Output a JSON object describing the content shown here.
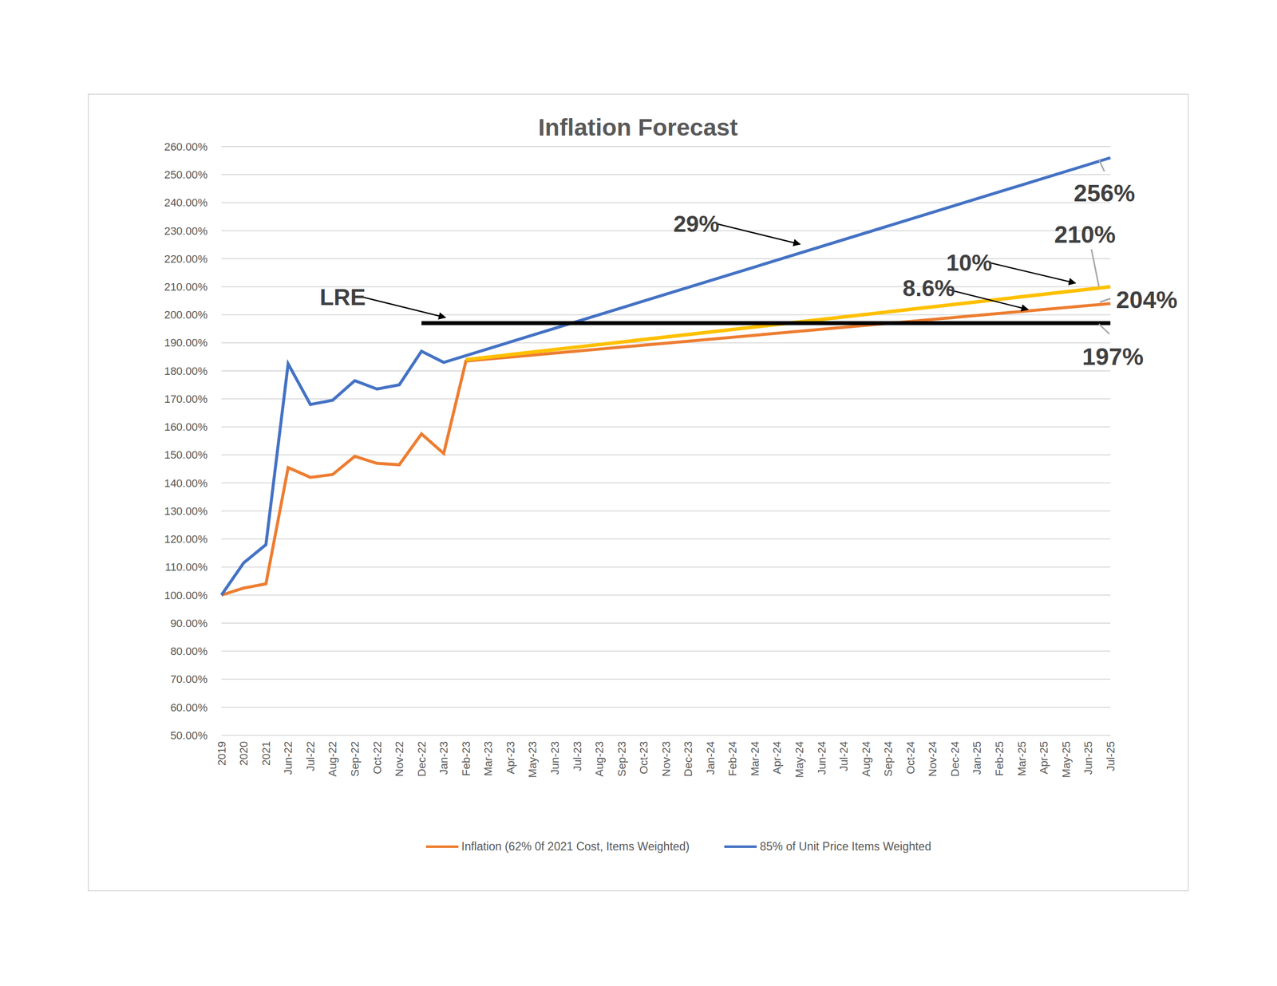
{
  "chart_data": {
    "type": "line",
    "title": "Inflation Forecast",
    "categories": [
      "2019",
      "2020",
      "2021",
      "Jun-22",
      "Jul-22",
      "Aug-22",
      "Sep-22",
      "Oct-22",
      "Nov-22",
      "Dec-22",
      "Jan-23",
      "Feb-23",
      "Mar-23",
      "Apr-23",
      "May-23",
      "Jun-23",
      "Jul-23",
      "Aug-23",
      "Sep-23",
      "Oct-23",
      "Nov-23",
      "Dec-23",
      "Jan-24",
      "Feb-24",
      "Mar-24",
      "Apr-24",
      "May-24",
      "Jun-24",
      "Jul-24",
      "Aug-24",
      "Sep-24",
      "Oct-24",
      "Nov-24",
      "Dec-24",
      "Jan-25",
      "Feb-25",
      "Mar-25",
      "Apr-25",
      "May-25",
      "Jun-25",
      "Jul-25"
    ],
    "series": [
      {
        "name": "Inflation (62% 0f 2021 Cost, Items Weighted)",
        "color": "#ed7d31",
        "values": [
          100,
          102.5,
          104,
          145.5,
          142,
          143,
          149.5,
          147,
          146.5,
          157.5,
          150.5,
          183.5,
          null,
          null,
          null,
          null,
          null,
          null,
          null,
          null,
          null,
          null,
          null,
          null,
          null,
          null,
          null,
          null,
          null,
          null,
          null,
          null,
          null,
          null,
          null,
          null,
          null,
          null,
          null,
          null,
          204
        ]
      },
      {
        "name": "85% of Unit Price Items Weighted",
        "color": "#4472c4",
        "values": [
          100,
          111.5,
          118,
          182.5,
          168,
          169.5,
          176.5,
          173.5,
          175,
          187,
          183,
          null,
          null,
          null,
          null,
          null,
          null,
          null,
          null,
          null,
          null,
          null,
          null,
          null,
          null,
          null,
          null,
          null,
          null,
          null,
          null,
          null,
          null,
          null,
          null,
          null,
          null,
          null,
          null,
          null,
          256
        ]
      },
      {
        "color": "#ffc000",
        "values": [
          null,
          null,
          null,
          null,
          null,
          null,
          null,
          null,
          null,
          null,
          null,
          184,
          null,
          null,
          null,
          null,
          null,
          null,
          null,
          null,
          null,
          null,
          null,
          null,
          null,
          null,
          null,
          null,
          null,
          null,
          null,
          null,
          null,
          null,
          null,
          null,
          null,
          null,
          null,
          null,
          210
        ]
      },
      {
        "color": "#000000",
        "values": [
          null,
          null,
          null,
          null,
          null,
          null,
          null,
          null,
          null,
          197,
          null,
          null,
          null,
          null,
          null,
          null,
          null,
          null,
          null,
          null,
          null,
          null,
          null,
          null,
          null,
          null,
          null,
          null,
          null,
          null,
          null,
          null,
          null,
          null,
          null,
          null,
          null,
          null,
          null,
          null,
          197
        ]
      }
    ],
    "ylim": [
      50,
      260
    ],
    "yticks": [
      {
        "value": 50,
        "label": "50.00%"
      },
      {
        "value": 60,
        "label": "60.00%"
      },
      {
        "value": 70,
        "label": "70.00%"
      },
      {
        "value": 80,
        "label": "80.00%"
      },
      {
        "value": 90,
        "label": "90.00%"
      },
      {
        "value": 100,
        "label": "100.00%"
      },
      {
        "value": 110,
        "label": "110.00%"
      },
      {
        "value": 120,
        "label": "120.00%"
      },
      {
        "value": 130,
        "label": "130.00%"
      },
      {
        "value": 140,
        "label": "140.00%"
      },
      {
        "value": 150,
        "label": "150.00%"
      },
      {
        "value": 160,
        "label": "160.00%"
      },
      {
        "value": 170,
        "label": "170.00%"
      },
      {
        "value": 180,
        "label": "180.00%"
      },
      {
        "value": 190,
        "label": "190.00%"
      },
      {
        "value": 200,
        "label": "200.00%"
      },
      {
        "value": 210,
        "label": "210.00%"
      },
      {
        "value": 220,
        "label": "220.00%"
      },
      {
        "value": 230,
        "label": "230.00%"
      },
      {
        "value": 240,
        "label": "240.00%"
      },
      {
        "value": 250,
        "label": "250.00%"
      },
      {
        "value": 260,
        "label": "260.00%"
      }
    ],
    "grid": true,
    "legend": "bottom",
    "annotations": [
      {
        "text": "LRE"
      },
      {
        "text": "29%"
      },
      {
        "text": "10%"
      },
      {
        "text": "8.6%"
      },
      {
        "text": "256%"
      },
      {
        "text": "210%"
      },
      {
        "text": "204%"
      },
      {
        "text": "197%"
      }
    ]
  }
}
